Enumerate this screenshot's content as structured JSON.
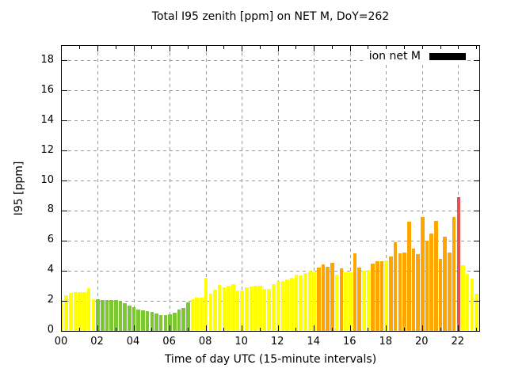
{
  "chart_data": {
    "type": "bar",
    "title": "Total I95 zenith [ppm] on NET M, DoY=262",
    "xlabel": "Time of day UTC (15-minute intervals)",
    "ylabel": "I95 [ppm]",
    "ylim": [
      0,
      19
    ],
    "xlim_hours": [
      0,
      23.15
    ],
    "grid": true,
    "bar_interval_minutes": 15,
    "legend": {
      "label": "ion net M",
      "position": "top-right",
      "swatch_color": "#000000"
    },
    "y_ticks": [
      0,
      2,
      4,
      6,
      8,
      10,
      12,
      14,
      16,
      18
    ],
    "y_tick_labels": [
      "0",
      "2",
      "4",
      "6",
      "8",
      "10",
      "12",
      "14",
      "16",
      "18"
    ],
    "x_major_tick_hours": [
      0,
      2,
      4,
      6,
      8,
      10,
      12,
      14,
      16,
      18,
      20,
      22
    ],
    "x_tick_labels": [
      "00",
      "02",
      "04",
      "06",
      "08",
      "10",
      "12",
      "14",
      "16",
      "18",
      "20",
      "22"
    ],
    "x_minor_tick_hours": [
      1,
      3,
      5,
      7,
      9,
      11,
      13,
      15,
      17,
      19,
      21,
      23
    ],
    "colors": {
      "yellow": "#ffff00",
      "green": "#7cc832",
      "orange": "#ffa500",
      "red": "#e85151",
      "grid": "#9a9a9a",
      "axis": "#000000"
    },
    "times": [
      "00:00",
      "00:15",
      "00:30",
      "00:45",
      "01:00",
      "01:15",
      "01:30",
      "01:45",
      "02:00",
      "02:15",
      "02:30",
      "02:45",
      "03:00",
      "03:15",
      "03:30",
      "03:45",
      "04:00",
      "04:15",
      "04:30",
      "04:45",
      "05:00",
      "05:15",
      "05:30",
      "05:45",
      "06:00",
      "06:15",
      "06:30",
      "06:45",
      "07:00",
      "07:15",
      "07:30",
      "07:45",
      "08:00",
      "08:15",
      "08:30",
      "08:45",
      "09:00",
      "09:15",
      "09:30",
      "09:45",
      "10:00",
      "10:15",
      "10:30",
      "10:45",
      "11:00",
      "11:15",
      "11:30",
      "11:45",
      "12:00",
      "12:15",
      "12:30",
      "12:45",
      "13:00",
      "13:15",
      "13:30",
      "13:45",
      "14:00",
      "14:15",
      "14:30",
      "14:45",
      "15:00",
      "15:15",
      "15:30",
      "15:45",
      "16:00",
      "16:15",
      "16:30",
      "16:45",
      "17:00",
      "17:15",
      "17:30",
      "17:45",
      "18:00",
      "18:15",
      "18:30",
      "18:45",
      "19:00",
      "19:15",
      "19:30",
      "19:45",
      "20:00",
      "20:15",
      "20:30",
      "20:45",
      "21:00",
      "21:15",
      "21:30",
      "21:45",
      "22:00",
      "22:15",
      "22:30",
      "22:45",
      "23:00"
    ],
    "values": [
      2.0,
      2.4,
      2.55,
      2.6,
      2.6,
      2.6,
      2.85,
      2.1,
      2.1,
      2.05,
      2.05,
      2.05,
      2.05,
      2.0,
      1.85,
      1.7,
      1.6,
      1.4,
      1.35,
      1.3,
      1.25,
      1.15,
      1.05,
      1.05,
      1.1,
      1.2,
      1.4,
      1.55,
      1.9,
      2.1,
      2.2,
      2.2,
      3.55,
      2.5,
      2.75,
      3.05,
      2.9,
      3.0,
      3.1,
      2.7,
      2.7,
      2.9,
      2.95,
      3.0,
      3.0,
      2.8,
      2.8,
      3.1,
      3.3,
      3.35,
      3.45,
      3.55,
      3.75,
      3.7,
      3.85,
      4.0,
      3.95,
      4.2,
      4.45,
      4.3,
      4.55,
      3.75,
      4.15,
      3.9,
      3.9,
      5.15,
      4.2,
      4.0,
      4.05,
      4.5,
      4.65,
      4.65,
      4.7,
      4.95,
      5.9,
      5.15,
      5.2,
      7.3,
      5.5,
      5.1,
      7.6,
      6.0,
      6.5,
      7.35,
      4.8,
      6.3,
      5.25,
      7.6,
      8.9,
      4.4,
      3.8,
      3.5,
      2.5
    ],
    "levels": [
      "yellow",
      "yellow",
      "yellow",
      "yellow",
      "yellow",
      "yellow",
      "yellow",
      "yellow",
      "green",
      "green",
      "green",
      "green",
      "green",
      "green",
      "green",
      "green",
      "green",
      "green",
      "green",
      "green",
      "green",
      "green",
      "green",
      "green",
      "green",
      "green",
      "green",
      "green",
      "green",
      "yellow",
      "yellow",
      "yellow",
      "yellow",
      "yellow",
      "yellow",
      "yellow",
      "yellow",
      "yellow",
      "yellow",
      "yellow",
      "yellow",
      "yellow",
      "yellow",
      "yellow",
      "yellow",
      "yellow",
      "yellow",
      "yellow",
      "yellow",
      "yellow",
      "yellow",
      "yellow",
      "yellow",
      "yellow",
      "yellow",
      "yellow",
      "yellow",
      "orange",
      "orange",
      "orange",
      "orange",
      "yellow",
      "orange",
      "yellow",
      "yellow",
      "orange",
      "orange",
      "yellow",
      "yellow",
      "orange",
      "orange",
      "orange",
      "yellow",
      "orange",
      "orange",
      "orange",
      "orange",
      "orange",
      "orange",
      "orange",
      "orange",
      "orange",
      "orange",
      "orange",
      "orange",
      "orange",
      "orange",
      "orange",
      "red",
      "yellow",
      "yellow",
      "yellow",
      "yellow"
    ]
  }
}
